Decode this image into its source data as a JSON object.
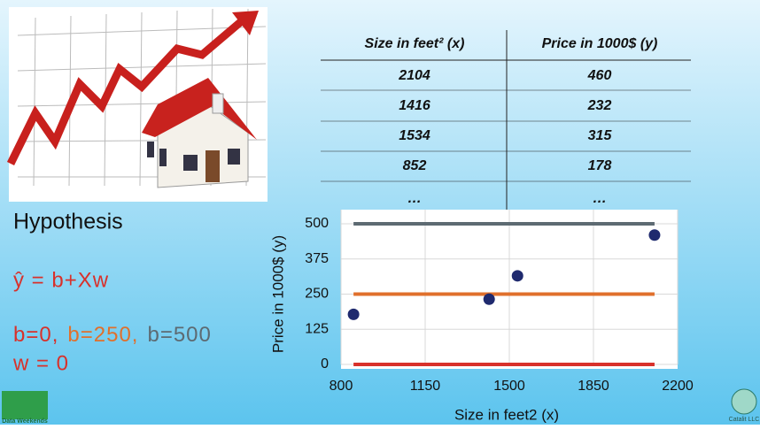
{
  "table": {
    "header": [
      "Size in feet² (x)",
      "Price in 1000$ (y)"
    ],
    "rows": [
      [
        2104,
        460
      ],
      [
        1416,
        232
      ],
      [
        1534,
        315
      ],
      [
        852,
        178
      ],
      [
        "…",
        "…"
      ]
    ]
  },
  "hypothesis": {
    "title": "Hypothesis",
    "formula": "ŷ = b+Xw",
    "params": [
      {
        "text": "b=0,",
        "color": "#d8312b"
      },
      {
        "text": "b=250,",
        "color": "#e0702c"
      },
      {
        "text": "b=500",
        "color": "#5d6a72"
      }
    ],
    "w": "w = 0"
  },
  "logos": {
    "left": "Data Weekends",
    "right": "Catalit LLC"
  },
  "chart_data": {
    "type": "scatter",
    "x_label": "Size in feet2 (x)",
    "y_label": "Price in 1000$ (y)",
    "x": [
      2104,
      1416,
      1534,
      852
    ],
    "values": [
      460,
      232,
      315,
      178
    ],
    "color": "#1f2a6e",
    "lines": [
      {
        "color": "#d8312b",
        "x": [
          852,
          2104
        ],
        "values": [
          0,
          0
        ]
      },
      {
        "color": "#e0702c",
        "x": [
          852,
          2104
        ],
        "values": [
          250,
          250
        ]
      },
      {
        "color": "#5d6a72",
        "x": [
          852,
          2104
        ],
        "values": [
          500,
          500
        ]
      }
    ],
    "xlim": [
      800,
      2200
    ],
    "xticks": [
      800,
      1150,
      1500,
      1850,
      2200
    ],
    "ylim": [
      0,
      500
    ],
    "yticks": [
      0,
      125,
      250,
      375,
      500
    ],
    "grid": true
  }
}
